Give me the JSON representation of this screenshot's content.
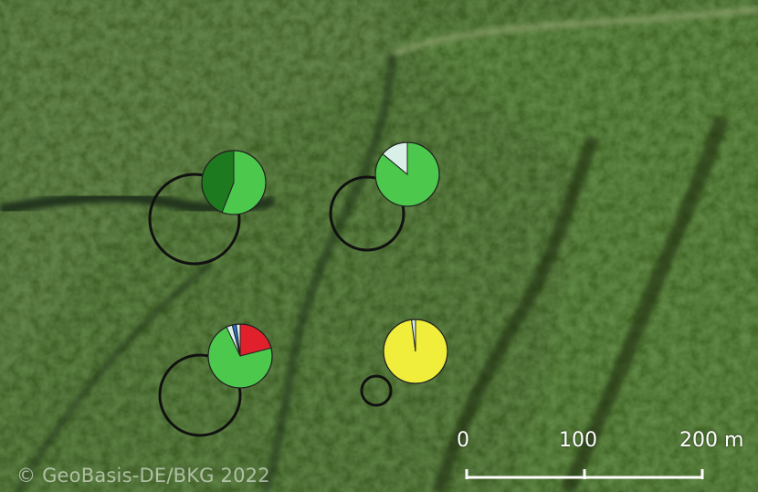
{
  "copyright": "© GeoBasis-DE/BKG 2022",
  "scale_bar": {
    "labels": [
      "0",
      "100",
      "200 m"
    ],
    "color": "#ffffff"
  },
  "pie_colors": {
    "dark_green": "#1e7a1e",
    "light_green": "#4cc94c",
    "pale_cyan": "#d9f0e8",
    "red": "#e0202a",
    "blue": "#2a6fd0",
    "yellow": "#f0ee3a"
  },
  "plots": [
    {
      "id": "plot-top-left",
      "slices": [
        {
          "color_key": "light_green",
          "fraction": 0.56
        },
        {
          "color_key": "dark_green",
          "fraction": 0.44
        }
      ]
    },
    {
      "id": "plot-top-right",
      "slices": [
        {
          "color_key": "light_green",
          "fraction": 0.86
        },
        {
          "color_key": "pale_cyan",
          "fraction": 0.14
        }
      ]
    },
    {
      "id": "plot-bottom-left",
      "slices": [
        {
          "color_key": "red",
          "fraction": 0.21
        },
        {
          "color_key": "light_green",
          "fraction": 0.72
        },
        {
          "color_key": "pale_cyan",
          "fraction": 0.03
        },
        {
          "color_key": "blue",
          "fraction": 0.02
        },
        {
          "color_key": "pale_cyan",
          "fraction": 0.02
        }
      ]
    },
    {
      "id": "plot-bottom-right",
      "slices": [
        {
          "color_key": "yellow",
          "fraction": 0.98
        },
        {
          "color_key": "pale_cyan",
          "fraction": 0.02
        }
      ]
    }
  ]
}
